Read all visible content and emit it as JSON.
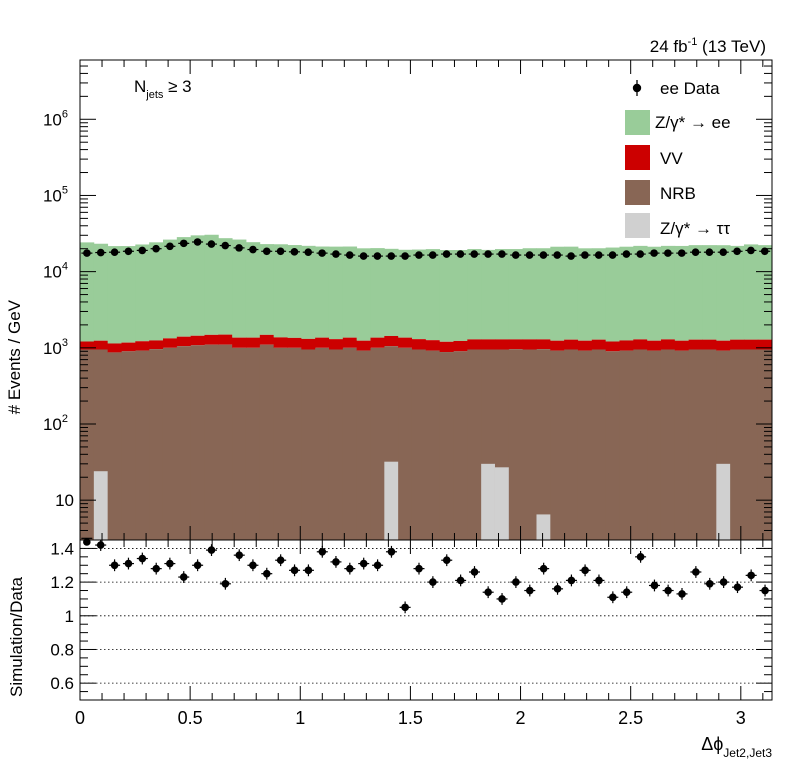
{
  "chart_data": [
    {
      "type": "bar",
      "title": "",
      "lumi_label": "24 fb",
      "lumi_sup": "-1",
      "lumi_rest": " (13 TeV)",
      "selection_main": "N",
      "selection_sub": "jets",
      "selection_rest": " ≥ 3",
      "ylabel": "# Events / GeV",
      "yscale": "log",
      "ylim": [
        3,
        6000000
      ],
      "xlim": [
        0,
        3.1416
      ],
      "ytick_labels": [
        {
          "value": 10,
          "label": "10"
        },
        {
          "value": 100,
          "label": "10",
          "exp": "2"
        },
        {
          "value": 1000,
          "label": "10",
          "exp": "3"
        },
        {
          "value": 10000,
          "label": "10",
          "exp": "4"
        },
        {
          "value": 100000,
          "label": "10",
          "exp": "5"
        },
        {
          "value": 1000000,
          "label": "10",
          "exp": "6"
        }
      ],
      "legend_position": "top-right",
      "legend": {
        "data": "ee Data",
        "zee": "Z/γ* → ee",
        "vv": "VV",
        "nrb": "NRB",
        "ztt": "Z/γ* → ττ"
      },
      "colors": {
        "zee": "#99cc99",
        "vv": "#cc0000",
        "nrb": "#886655",
        "ztt": "#d0d0d0",
        "data": "#000000"
      },
      "bin_width": 0.0628,
      "bin_count": 50,
      "series": [
        {
          "name": "NRB",
          "values": [
            950,
            950,
            870,
            900,
            920,
            960,
            1000,
            1050,
            1080,
            1100,
            1100,
            1000,
            1000,
            1100,
            1000,
            1000,
            950,
            1000,
            950,
            1000,
            920,
            1000,
            1050,
            1000,
            950,
            920,
            880,
            900,
            950,
            950,
            950,
            960,
            950,
            960,
            920,
            950,
            920,
            950,
            900,
            920,
            950,
            920,
            950,
            920,
            950,
            950,
            920,
            950,
            950,
            950
          ]
        },
        {
          "name": "VV",
          "values": [
            260,
            290,
            270,
            270,
            300,
            290,
            330,
            350,
            360,
            380,
            390,
            360,
            360,
            380,
            370,
            350,
            360,
            360,
            350,
            360,
            320,
            360,
            380,
            360,
            350,
            340,
            320,
            330,
            340,
            340,
            340,
            330,
            340,
            330,
            320,
            330,
            320,
            330,
            310,
            330,
            340,
            320,
            340,
            320,
            330,
            330,
            320,
            330,
            330,
            330
          ]
        },
        {
          "name": "Z/γ* → ee",
          "values": [
            23000,
            22000,
            20500,
            20500,
            21500,
            23000,
            25000,
            27000,
            28500,
            29000,
            26000,
            25000,
            23000,
            21500,
            21500,
            21000,
            20500,
            20000,
            20000,
            20000,
            19000,
            19000,
            18500,
            18000,
            18200,
            18500,
            18000,
            18000,
            18500,
            18000,
            18500,
            18500,
            19000,
            19000,
            20000,
            20000,
            19000,
            19000,
            19500,
            20000,
            20500,
            20000,
            20500,
            20500,
            21000,
            21000,
            21000,
            20500,
            21500,
            21000
          ]
        },
        {
          "name": "Z/γ* → ττ",
          "values": [
            0,
            24,
            0,
            0,
            0,
            0,
            0,
            0,
            0,
            0,
            0,
            0,
            0,
            0,
            0,
            0,
            0,
            0,
            0,
            0,
            0,
            0,
            32,
            0,
            0,
            0,
            0,
            0,
            0,
            30,
            27,
            0,
            0,
            6.5,
            0,
            0,
            0,
            0,
            0,
            0,
            0,
            0,
            0,
            0,
            0,
            0,
            30,
            0,
            0,
            0
          ]
        }
      ],
      "data_values": [
        17500,
        17800,
        18000,
        18500,
        19000,
        20000,
        21500,
        23500,
        24500,
        23000,
        22000,
        20500,
        19500,
        18500,
        18500,
        18200,
        18000,
        17500,
        17000,
        16500,
        16000,
        16000,
        16000,
        16000,
        16500,
        16500,
        17000,
        17000,
        17000,
        17000,
        17000,
        16500,
        16500,
        16500,
        16500,
        16000,
        16500,
        16500,
        16500,
        17000,
        17000,
        17500,
        17500,
        17500,
        18000,
        18000,
        18000,
        18500,
        19000,
        18500
      ]
    },
    {
      "type": "scatter",
      "ylabel": "Simulation/Data",
      "xlabel_main": "Δϕ",
      "xlabel_sub": "Jet2,Jet3",
      "ylim": [
        0.5,
        1.45
      ],
      "xlim": [
        0,
        3.1416
      ],
      "gridlines": [
        0.6,
        0.8,
        1.0,
        1.2,
        1.4
      ],
      "ytick_labels": [
        "0.6",
        "0.8",
        "1",
        "1.2",
        "1.4"
      ],
      "xtick_labels": [
        "0",
        "0.5",
        "1",
        "1.5",
        "2",
        "2.5",
        "3"
      ],
      "x": [
        0.031,
        0.094,
        0.157,
        0.22,
        0.283,
        0.346,
        0.408,
        0.471,
        0.534,
        0.597,
        0.66,
        0.723,
        0.785,
        0.848,
        0.911,
        0.974,
        1.037,
        1.1,
        1.162,
        1.225,
        1.288,
        1.351,
        1.414,
        1.476,
        1.539,
        1.602,
        1.665,
        1.728,
        1.791,
        1.853,
        1.916,
        1.979,
        2.042,
        2.105,
        2.168,
        2.231,
        2.293,
        2.356,
        2.419,
        2.482,
        2.545,
        2.608,
        2.67,
        2.733,
        2.796,
        2.859,
        2.922,
        2.985,
        3.047,
        3.11
      ],
      "y": [
        1.46,
        1.42,
        1.3,
        1.31,
        1.34,
        1.28,
        1.31,
        1.23,
        1.3,
        1.39,
        1.19,
        1.36,
        1.3,
        1.25,
        1.33,
        1.27,
        1.27,
        1.38,
        1.32,
        1.28,
        1.31,
        1.3,
        1.38,
        1.05,
        1.28,
        1.2,
        1.33,
        1.21,
        1.26,
        1.14,
        1.1,
        1.2,
        1.15,
        1.28,
        1.16,
        1.21,
        1.27,
        1.21,
        1.11,
        1.14,
        1.35,
        1.18,
        1.15,
        1.13,
        1.26,
        1.19,
        1.2,
        1.17,
        1.24,
        1.15
      ],
      "y_err": 0.035
    }
  ]
}
